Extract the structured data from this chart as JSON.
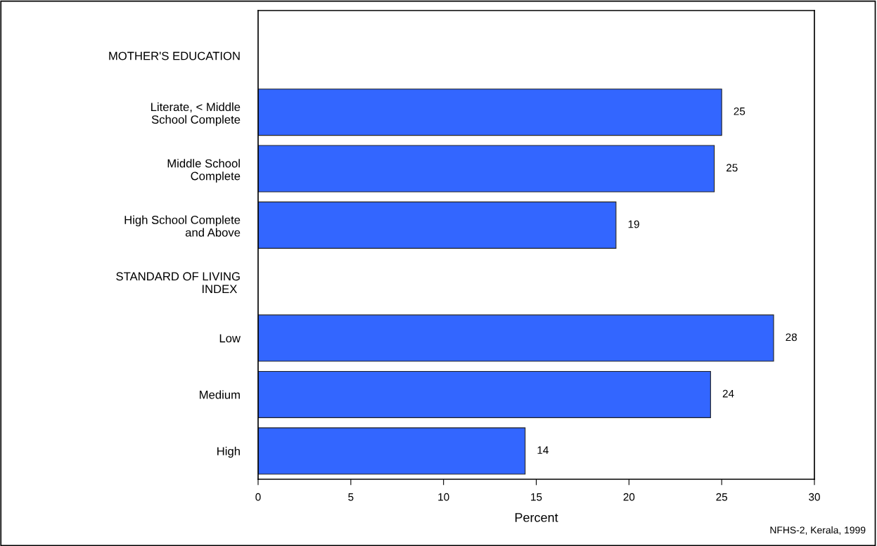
{
  "chart_data": {
    "type": "bar",
    "orientation": "horizontal",
    "categories": [
      "MOTHER'S EDUCATION",
      "Literate, < Middle\nSchool Complete",
      "Middle School\nComplete",
      "High School Complete\nand Above",
      "STANDARD OF LIVING\nINDEX ",
      "Low",
      "Medium",
      "High"
    ],
    "values": [
      null,
      25.0,
      24.6,
      19.3,
      null,
      27.8,
      24.4,
      14.4
    ],
    "value_labels": [
      null,
      "25",
      "25",
      "19",
      null,
      "28",
      "24",
      "14"
    ],
    "color": "#3366ff",
    "xlabel": "Percent",
    "xlim": [
      0,
      30
    ],
    "xticks": [
      0,
      5,
      10,
      15,
      20,
      25,
      30
    ],
    "grid": false,
    "annotations": [
      "NFHS-2, Kerala, 1999"
    ]
  }
}
